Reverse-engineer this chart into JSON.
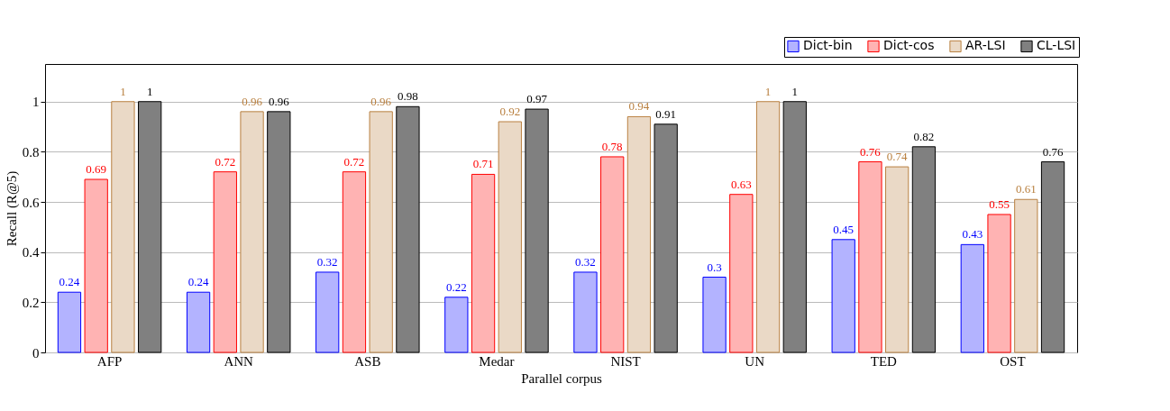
{
  "chart_data": {
    "type": "bar",
    "xlabel": "Parallel corpus",
    "ylabel": "Recall (R@5)",
    "categories": [
      "AFP",
      "ANN",
      "ASB",
      "Medar",
      "NIST",
      "UN",
      "TED",
      "OST"
    ],
    "series": [
      {
        "name": "Dict-bin",
        "color": "#b3b3ff",
        "values": [
          0.24,
          0.24,
          0.32,
          0.22,
          0.32,
          0.3,
          0.45,
          0.43
        ]
      },
      {
        "name": "Dict-cos",
        "color": "#ffb3b3",
        "values": [
          0.69,
          0.72,
          0.72,
          0.71,
          0.78,
          0.63,
          0.76,
          0.55
        ]
      },
      {
        "name": "AR-LSI",
        "color": "#ead9c6",
        "values": [
          1,
          0.96,
          0.96,
          0.92,
          0.94,
          1,
          0.74,
          0.61
        ]
      },
      {
        "name": "CL-LSI",
        "color": "#808080",
        "values": [
          1,
          0.96,
          0.98,
          0.97,
          0.91,
          1,
          0.82,
          0.76
        ]
      }
    ],
    "ylim": [
      0,
      1.15
    ],
    "yticks": [
      0,
      0.2,
      0.4,
      0.6,
      0.8,
      1
    ],
    "grid": "y",
    "legend": "top right",
    "data_labels": true
  }
}
